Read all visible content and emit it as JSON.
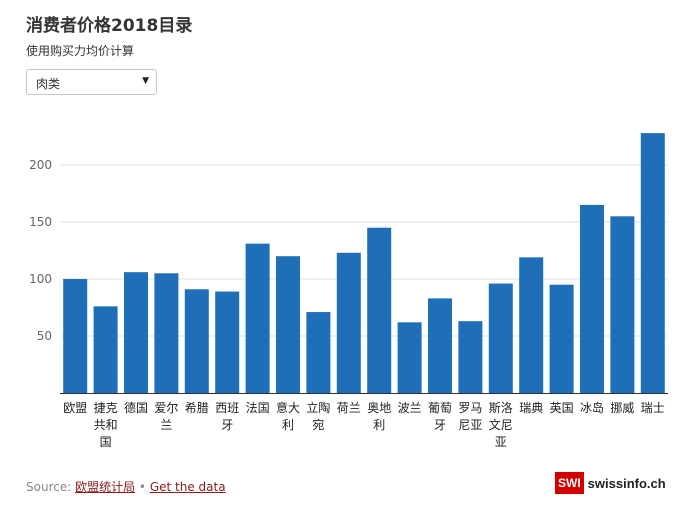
{
  "header": {
    "title": "消费者价格2018目录",
    "subtitle": "使用购买力均价计算"
  },
  "filter": {
    "selected": "肉类",
    "arrow_glyph": "▼"
  },
  "chart_data": {
    "type": "bar",
    "categories": [
      "欧盟",
      "捷克共和国",
      "德国",
      "爱尔兰",
      "希腊",
      "西班牙",
      "法国",
      "意大利",
      "立陶宛",
      "荷兰",
      "奥地利",
      "波兰",
      "葡萄牙",
      "罗马尼亚",
      "斯洛文尼亚",
      "瑞典",
      "英国",
      "冰岛",
      "挪威",
      "瑞士"
    ],
    "category_lines": [
      [
        "欧盟"
      ],
      [
        "捷克",
        "共和",
        "国"
      ],
      [
        "德国"
      ],
      [
        "爱尔",
        "兰"
      ],
      [
        "希腊"
      ],
      [
        "西班",
        "牙"
      ],
      [
        "法国"
      ],
      [
        "意大",
        "利"
      ],
      [
        "立陶",
        "宛"
      ],
      [
        "荷兰"
      ],
      [
        "奥地",
        "利"
      ],
      [
        "波兰"
      ],
      [
        "葡萄",
        "牙"
      ],
      [
        "罗马",
        "尼亚"
      ],
      [
        "斯洛",
        "文尼",
        "亚"
      ],
      [
        "瑞典"
      ],
      [
        "英国"
      ],
      [
        "冰岛"
      ],
      [
        "挪威"
      ],
      [
        "瑞士"
      ]
    ],
    "values": [
      100,
      76,
      106,
      105,
      91,
      89,
      131,
      120,
      71,
      123,
      145,
      62,
      83,
      63,
      96,
      119,
      95,
      165,
      155,
      228
    ],
    "yticks": [
      50,
      100,
      150,
      200
    ],
    "ylim": [
      0,
      228
    ],
    "grid": true,
    "bar_color": "#1f6fb8"
  },
  "footer": {
    "source_prefix": "Source: ",
    "source_link": "欧盟统计局",
    "separator": " • ",
    "data_link": "Get the data"
  },
  "logo": {
    "badge": "SWI",
    "site": "swissinfo.ch"
  }
}
